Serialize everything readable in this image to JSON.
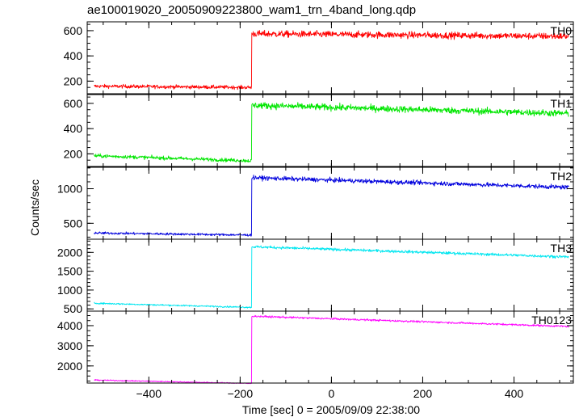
{
  "title": "ae100019020_20050909223800_wam1_trn_4band_long.qdp",
  "ylabel": "Counts/sec",
  "xlabel": "Time [sec] 0 = 2005/09/09 22:38:00",
  "chart_data": {
    "type": "line",
    "title": "ae100019020_20050909223800_wam1_trn_4band_long.qdp",
    "xlabel": "Time [sec] 0 = 2005/09/09 22:38:00",
    "ylabel": "Counts/sec",
    "xlim": [
      -535,
      530
    ],
    "x_ticks": [
      -400,
      -200,
      0,
      200,
      400
    ],
    "x_tick_labels": [
      "−400",
      "−200",
      "0",
      "200",
      "400"
    ],
    "data_x_range": [
      -520,
      520
    ],
    "step_time": -175,
    "grid": false,
    "panels": [
      {
        "name": "TH0",
        "color": "#ff0000",
        "ylim": [
          100,
          670
        ],
        "y_ticks": [
          200,
          400,
          600
        ],
        "y_tick_labels": [
          "200",
          "400",
          "600"
        ],
        "pre_start": 160,
        "pre_end": 150,
        "post_start": 575,
        "post_end": 555,
        "noise": 25
      },
      {
        "name": "TH1",
        "color": "#00e600",
        "ylim": [
          100,
          670
        ],
        "y_ticks": [
          200,
          400,
          600
        ],
        "y_tick_labels": [
          "200",
          "400",
          "600"
        ],
        "pre_start": 185,
        "pre_end": 145,
        "post_start": 585,
        "post_end": 520,
        "noise": 25
      },
      {
        "name": "TH2",
        "color": "#0000dd",
        "ylim": [
          270,
          1310
        ],
        "y_ticks": [
          500,
          1000
        ],
        "y_tick_labels": [
          "500",
          "1000"
        ],
        "pre_start": 360,
        "pre_end": 330,
        "post_start": 1160,
        "post_end": 1020,
        "noise": 30
      },
      {
        "name": "TH3",
        "color": "#00e6f0",
        "ylim": [
          440,
          2350
        ],
        "y_ticks": [
          500,
          1000,
          1500,
          2000
        ],
        "y_tick_labels": [
          "500",
          "1000",
          "1500",
          "2000"
        ],
        "pre_start": 650,
        "pre_end": 540,
        "post_start": 2150,
        "post_end": 1880,
        "noise": 35
      },
      {
        "name": "TH0123",
        "color": "#ff00ff",
        "ylim": [
          1150,
          4720
        ],
        "y_ticks": [
          2000,
          3000,
          4000
        ],
        "y_tick_labels": [
          "2000",
          "3000",
          "4000"
        ],
        "pre_start": 1300,
        "pre_end": 1130,
        "post_start": 4470,
        "post_end": 3960,
        "noise": 45
      }
    ]
  }
}
